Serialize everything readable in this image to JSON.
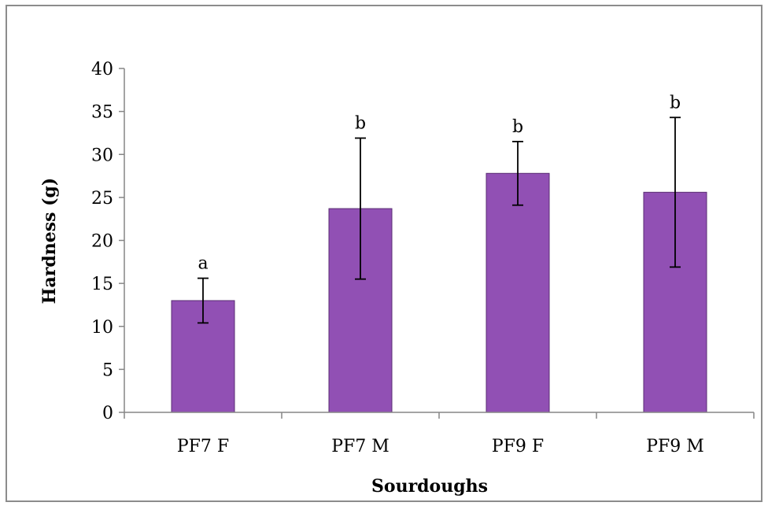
{
  "chart_data": {
    "type": "bar",
    "categories": [
      "PF7 F",
      "PF7 M",
      "PF9 F",
      "PF9 M"
    ],
    "series": [
      {
        "values": [
          13.0,
          23.7,
          27.8,
          25.6
        ],
        "error": [
          2.6,
          8.2,
          3.7,
          8.7
        ],
        "color": "#9150b4"
      }
    ],
    "significance_labels": [
      "a",
      "b",
      "b",
      "b"
    ],
    "xlabel": "Sourdoughs",
    "ylabel": "Hardness (g)",
    "ylim": [
      0,
      40
    ],
    "yticks": [
      0,
      5,
      10,
      15,
      20,
      25,
      30,
      35,
      40
    ],
    "grid": false,
    "legend": "none"
  }
}
